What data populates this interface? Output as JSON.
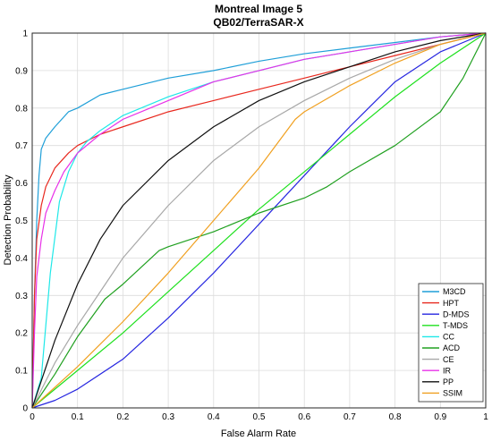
{
  "chart_data": {
    "type": "line",
    "title": "Montreal Image 5",
    "subtitle": "QB02/TerraSAR-X",
    "xlabel": "False Alarm Rate",
    "ylabel": "Detection Probability",
    "xlim": [
      0,
      1
    ],
    "ylim": [
      0,
      1
    ],
    "xticks": [
      "0",
      "0.1",
      "0.2",
      "0.3",
      "0.4",
      "0.5",
      "0.6",
      "0.7",
      "0.8",
      "0.9",
      "1"
    ],
    "yticks": [
      "0",
      "0.1",
      "0.2",
      "0.3",
      "0.4",
      "0.5",
      "0.6",
      "0.7",
      "0.8",
      "0.9",
      "1"
    ],
    "grid": true,
    "legend_position": "bottom-right",
    "series": [
      {
        "name": "M3CD",
        "color": "#1f9fd8",
        "x": [
          0,
          0.005,
          0.01,
          0.015,
          0.02,
          0.03,
          0.05,
          0.08,
          0.1,
          0.15,
          0.2,
          0.3,
          0.4,
          0.5,
          0.6,
          0.7,
          0.8,
          0.9,
          1.0
        ],
        "y": [
          0,
          0.3,
          0.5,
          0.62,
          0.69,
          0.72,
          0.75,
          0.79,
          0.8,
          0.835,
          0.85,
          0.88,
          0.9,
          0.925,
          0.945,
          0.96,
          0.975,
          0.99,
          1.0
        ]
      },
      {
        "name": "HPT",
        "color": "#e8281e",
        "x": [
          0,
          0.005,
          0.01,
          0.02,
          0.03,
          0.05,
          0.08,
          0.1,
          0.15,
          0.2,
          0.3,
          0.4,
          0.5,
          0.6,
          0.7,
          0.8,
          0.9,
          1.0
        ],
        "y": [
          0,
          0.3,
          0.45,
          0.54,
          0.59,
          0.64,
          0.68,
          0.7,
          0.73,
          0.75,
          0.79,
          0.82,
          0.85,
          0.88,
          0.91,
          0.94,
          0.97,
          1.0
        ]
      },
      {
        "name": "D-MDS",
        "color": "#2626e0",
        "x": [
          0,
          0.05,
          0.1,
          0.2,
          0.3,
          0.4,
          0.5,
          0.6,
          0.7,
          0.75,
          0.8,
          0.9,
          1.0
        ],
        "y": [
          0,
          0.02,
          0.05,
          0.13,
          0.24,
          0.36,
          0.49,
          0.62,
          0.75,
          0.81,
          0.87,
          0.95,
          1.0
        ]
      },
      {
        "name": "T-MDS",
        "color": "#1ee01e",
        "x": [
          0,
          0.1,
          0.2,
          0.3,
          0.4,
          0.5,
          0.6,
          0.7,
          0.8,
          0.9,
          1.0
        ],
        "y": [
          0,
          0.1,
          0.2,
          0.31,
          0.42,
          0.53,
          0.63,
          0.73,
          0.83,
          0.92,
          1.0
        ]
      },
      {
        "name": "CC",
        "color": "#1ee8e8",
        "x": [
          0,
          0.02,
          0.04,
          0.06,
          0.08,
          0.1,
          0.12,
          0.15,
          0.2,
          0.3,
          0.4,
          0.5,
          0.6,
          0.7,
          0.8,
          0.9,
          1.0
        ],
        "y": [
          0,
          0.08,
          0.36,
          0.55,
          0.63,
          0.68,
          0.71,
          0.74,
          0.78,
          0.83,
          0.87,
          0.9,
          0.93,
          0.95,
          0.97,
          0.99,
          1.0
        ]
      },
      {
        "name": "ACD",
        "color": "#20a020",
        "x": [
          0,
          0.05,
          0.1,
          0.16,
          0.2,
          0.28,
          0.3,
          0.4,
          0.5,
          0.6,
          0.65,
          0.7,
          0.8,
          0.9,
          0.95,
          1.0
        ],
        "y": [
          0,
          0.09,
          0.19,
          0.29,
          0.33,
          0.42,
          0.43,
          0.47,
          0.52,
          0.56,
          0.59,
          0.63,
          0.7,
          0.79,
          0.88,
          1.0
        ]
      },
      {
        "name": "CE",
        "color": "#a8a8a8",
        "x": [
          0,
          0.05,
          0.1,
          0.15,
          0.2,
          0.3,
          0.4,
          0.5,
          0.6,
          0.7,
          0.8,
          0.9,
          1.0
        ],
        "y": [
          0,
          0.12,
          0.22,
          0.31,
          0.4,
          0.54,
          0.66,
          0.75,
          0.82,
          0.88,
          0.93,
          0.97,
          1.0
        ]
      },
      {
        "name": "IR",
        "color": "#e830e8",
        "x": [
          0,
          0.005,
          0.01,
          0.02,
          0.03,
          0.05,
          0.07,
          0.1,
          0.15,
          0.2,
          0.3,
          0.4,
          0.5,
          0.6,
          0.7,
          0.8,
          0.9,
          1.0
        ],
        "y": [
          0,
          0.2,
          0.35,
          0.45,
          0.52,
          0.58,
          0.63,
          0.68,
          0.73,
          0.77,
          0.82,
          0.87,
          0.9,
          0.93,
          0.95,
          0.97,
          0.99,
          1.0
        ]
      },
      {
        "name": "PP",
        "color": "#101010",
        "x": [
          0,
          0.05,
          0.1,
          0.15,
          0.2,
          0.3,
          0.4,
          0.5,
          0.6,
          0.7,
          0.8,
          0.9,
          1.0
        ],
        "y": [
          0,
          0.18,
          0.33,
          0.45,
          0.54,
          0.66,
          0.75,
          0.82,
          0.87,
          0.91,
          0.95,
          0.98,
          1.0
        ]
      },
      {
        "name": "SSIM",
        "color": "#f0a020",
        "x": [
          0,
          0.1,
          0.2,
          0.3,
          0.4,
          0.5,
          0.58,
          0.6,
          0.7,
          0.8,
          0.9,
          1.0
        ],
        "y": [
          0,
          0.11,
          0.23,
          0.36,
          0.5,
          0.64,
          0.77,
          0.79,
          0.86,
          0.92,
          0.97,
          1.0
        ]
      }
    ]
  }
}
